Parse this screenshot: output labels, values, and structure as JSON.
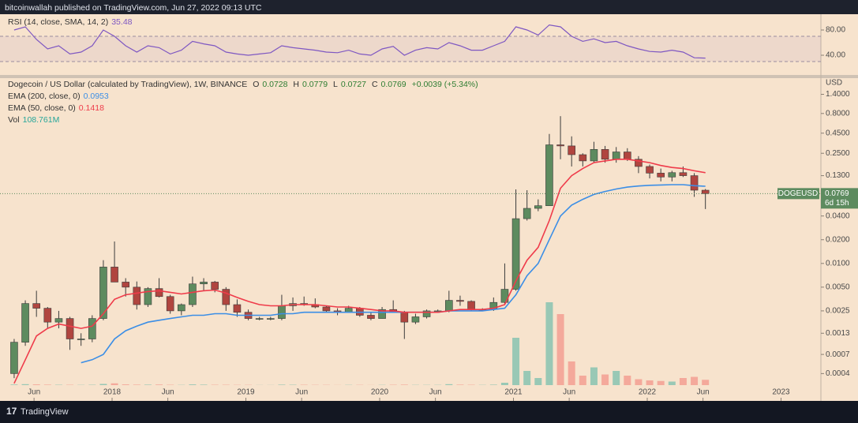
{
  "header": {
    "text": "bitcoinwallah published on TradingView.com, Jun 27, 2022 09:13 UTC"
  },
  "footer": {
    "brand": "TradingView"
  },
  "chart_data": [
    {
      "type": "line",
      "title": "RSI (14, close, SMA, 14, 2)",
      "color": "#7e57c2",
      "x": [
        "2017-04",
        "2017-05",
        "2017-06",
        "2017-07",
        "2017-08",
        "2017-09",
        "2017-10",
        "2017-11",
        "2017-12",
        "2018-01",
        "2018-02",
        "2018-03",
        "2018-04",
        "2018-05",
        "2018-06",
        "2018-07",
        "2018-08",
        "2018-09",
        "2018-10",
        "2018-11",
        "2018-12",
        "2019-01",
        "2019-02",
        "2019-03",
        "2019-04",
        "2019-05",
        "2019-06",
        "2019-07",
        "2019-08",
        "2019-09",
        "2019-10",
        "2019-11",
        "2019-12",
        "2020-01",
        "2020-02",
        "2020-03",
        "2020-04",
        "2020-05",
        "2020-06",
        "2020-07",
        "2020-08",
        "2020-09",
        "2020-10",
        "2020-11",
        "2020-12",
        "2021-01",
        "2021-02",
        "2021-03",
        "2021-04",
        "2021-05",
        "2021-06",
        "2021-07",
        "2021-08",
        "2021-09",
        "2021-10",
        "2021-11",
        "2021-12",
        "2022-01",
        "2022-02",
        "2022-03",
        "2022-04",
        "2022-05",
        "2022-06"
      ],
      "values": [
        80,
        85,
        65,
        50,
        55,
        42,
        45,
        55,
        80,
        70,
        55,
        45,
        55,
        52,
        42,
        48,
        62,
        58,
        55,
        45,
        42,
        40,
        42,
        44,
        55,
        52,
        50,
        48,
        45,
        44,
        48,
        42,
        40,
        50,
        54,
        40,
        48,
        52,
        50,
        60,
        55,
        48,
        48,
        55,
        62,
        85,
        80,
        72,
        88,
        85,
        70,
        62,
        66,
        60,
        62,
        55,
        50,
        46,
        45,
        48,
        45,
        36,
        35.48
      ],
      "band_levels": [
        70,
        30
      ],
      "ylim": [
        8.75,
        105
      ],
      "yticks": [
        {
          "value": 80,
          "label": "80.00"
        },
        {
          "value": 40,
          "label": "40.00"
        }
      ]
    },
    {
      "type": "candlestick",
      "title": "Dogecoin / US Dollar (calculated by TradingView), 1W, BINANCE",
      "y_label": "USD",
      "log_scale": true,
      "x": [
        "2017-04",
        "2017-05",
        "2017-06",
        "2017-07",
        "2017-08",
        "2017-09",
        "2017-10",
        "2017-11",
        "2017-12",
        "2018-01",
        "2018-02",
        "2018-03",
        "2018-04",
        "2018-05",
        "2018-06",
        "2018-07",
        "2018-08",
        "2018-09",
        "2018-10",
        "2018-11",
        "2018-12",
        "2019-01",
        "2019-02",
        "2019-03",
        "2019-04",
        "2019-05",
        "2019-06",
        "2019-07",
        "2019-08",
        "2019-09",
        "2019-10",
        "2019-11",
        "2019-12",
        "2020-01",
        "2020-02",
        "2020-03",
        "2020-04",
        "2020-05",
        "2020-06",
        "2020-07",
        "2020-08",
        "2020-09",
        "2020-10",
        "2020-11",
        "2020-12",
        "2021-01",
        "2021-02",
        "2021-03",
        "2021-04",
        "2021-05",
        "2021-06",
        "2021-07",
        "2021-08",
        "2021-09",
        "2021-10",
        "2021-11",
        "2021-12",
        "2022-01",
        "2022-02",
        "2022-03",
        "2022-04",
        "2022-05",
        "2022-06"
      ],
      "open": [
        0.0004,
        0.001,
        0.0031,
        0.0027,
        0.0018,
        0.002,
        0.0011,
        0.0011,
        0.002,
        0.009,
        0.0058,
        0.005,
        0.003,
        0.0048,
        0.0038,
        0.0025,
        0.003,
        0.0055,
        0.0058,
        0.0047,
        0.003,
        0.0024,
        0.002,
        0.002,
        0.002,
        0.0029,
        0.0031,
        0.003,
        0.0028,
        0.0025,
        0.0024,
        0.0027,
        0.0022,
        0.002,
        0.0026,
        0.0024,
        0.0018,
        0.0021,
        0.0025,
        0.0025,
        0.0034,
        0.0033,
        0.0026,
        0.0026,
        0.0032,
        0.0047,
        0.037,
        0.05,
        0.054,
        0.32,
        0.31,
        0.24,
        0.2,
        0.28,
        0.21,
        0.26,
        0.21,
        0.17,
        0.14,
        0.125,
        0.142,
        0.13,
        0.085
      ],
      "high": [
        0.0011,
        0.0034,
        0.0045,
        0.0028,
        0.0025,
        0.0021,
        0.0013,
        0.0022,
        0.011,
        0.019,
        0.0065,
        0.0059,
        0.005,
        0.0065,
        0.004,
        0.0031,
        0.0068,
        0.0065,
        0.006,
        0.005,
        0.0035,
        0.0026,
        0.0021,
        0.0021,
        0.004,
        0.0037,
        0.0038,
        0.0036,
        0.0029,
        0.0027,
        0.0029,
        0.0028,
        0.0024,
        0.0028,
        0.0034,
        0.0025,
        0.0023,
        0.0026,
        0.0026,
        0.0045,
        0.0039,
        0.0034,
        0.0027,
        0.0037,
        0.01,
        0.087,
        0.085,
        0.065,
        0.44,
        0.74,
        0.41,
        0.25,
        0.35,
        0.31,
        0.3,
        0.29,
        0.23,
        0.18,
        0.16,
        0.15,
        0.17,
        0.14,
        0.088
      ],
      "low": [
        0.00035,
        0.0009,
        0.0021,
        0.0015,
        0.0015,
        0.0008,
        0.0009,
        0.001,
        0.0019,
        0.007,
        0.0038,
        0.0026,
        0.0028,
        0.0037,
        0.0023,
        0.0022,
        0.0028,
        0.0045,
        0.0043,
        0.0025,
        0.0021,
        0.0019,
        0.0019,
        0.0019,
        0.0019,
        0.0025,
        0.0029,
        0.0027,
        0.0024,
        0.0022,
        0.0024,
        0.0021,
        0.0019,
        0.002,
        0.0024,
        0.0011,
        0.0017,
        0.002,
        0.0024,
        0.0024,
        0.0029,
        0.0025,
        0.0025,
        0.0025,
        0.003,
        0.0045,
        0.035,
        0.046,
        0.054,
        0.21,
        0.17,
        0.17,
        0.19,
        0.19,
        0.19,
        0.2,
        0.14,
        0.12,
        0.11,
        0.11,
        0.125,
        0.07,
        0.049
      ],
      "close": [
        0.001,
        0.0031,
        0.0027,
        0.0018,
        0.002,
        0.0011,
        0.0011,
        0.002,
        0.009,
        0.0058,
        0.005,
        0.003,
        0.0048,
        0.0038,
        0.0025,
        0.003,
        0.0055,
        0.0058,
        0.0047,
        0.003,
        0.0024,
        0.002,
        0.002,
        0.002,
        0.0029,
        0.0031,
        0.003,
        0.0028,
        0.0025,
        0.0024,
        0.0027,
        0.0022,
        0.002,
        0.0026,
        0.0024,
        0.0018,
        0.0021,
        0.0025,
        0.0025,
        0.0034,
        0.0033,
        0.0026,
        0.0026,
        0.0032,
        0.0047,
        0.037,
        0.05,
        0.054,
        0.32,
        0.31,
        0.24,
        0.2,
        0.28,
        0.21,
        0.26,
        0.21,
        0.17,
        0.14,
        0.125,
        0.142,
        0.13,
        0.085,
        0.0769
      ],
      "up_color": "#5d8b5f",
      "down_color": "#b0453f",
      "series": [
        {
          "name": "EMA (200, close, 0)",
          "color": "#3b8ee6",
          "values": [
            null,
            null,
            null,
            null,
            null,
            null,
            0.00055,
            0.0006,
            0.0007,
            0.0011,
            0.0014,
            0.0016,
            0.0018,
            0.0019,
            0.002,
            0.0021,
            0.0022,
            0.0022,
            0.0023,
            0.0023,
            0.0022,
            0.0022,
            0.0022,
            0.0022,
            0.0023,
            0.0023,
            0.0024,
            0.0024,
            0.0024,
            0.0024,
            0.0024,
            0.0024,
            0.0024,
            0.0024,
            0.0024,
            0.0024,
            0.0024,
            0.0024,
            0.0024,
            0.0025,
            0.0025,
            0.0025,
            0.0025,
            0.0026,
            0.0027,
            0.004,
            0.007,
            0.01,
            0.02,
            0.04,
            0.055,
            0.065,
            0.075,
            0.082,
            0.088,
            0.093,
            0.096,
            0.098,
            0.099,
            0.1,
            0.1,
            0.097,
            0.0953
          ]
        },
        {
          "name": "EMA (50, close, 0)",
          "color": "#ef3b4a",
          "values": [
            0.0003,
            0.0006,
            0.0012,
            0.0015,
            0.0017,
            0.0016,
            0.0015,
            0.0016,
            0.0023,
            0.0035,
            0.004,
            0.0042,
            0.0044,
            0.0045,
            0.0043,
            0.0041,
            0.0043,
            0.0045,
            0.0046,
            0.0042,
            0.0037,
            0.0033,
            0.003,
            0.0029,
            0.0029,
            0.003,
            0.003,
            0.003,
            0.0029,
            0.0028,
            0.0028,
            0.0027,
            0.0026,
            0.0025,
            0.0025,
            0.0024,
            0.0024,
            0.0024,
            0.0024,
            0.0025,
            0.0026,
            0.0026,
            0.0026,
            0.0027,
            0.003,
            0.006,
            0.011,
            0.016,
            0.035,
            0.09,
            0.13,
            0.16,
            0.19,
            0.2,
            0.21,
            0.21,
            0.2,
            0.19,
            0.175,
            0.165,
            0.16,
            0.15,
            0.1418
          ]
        }
      ],
      "volume": {
        "name": "Vol",
        "color": "#26a69a",
        "value_label": "108.761M",
        "values": [
          5,
          8,
          6,
          4,
          3,
          3,
          2,
          3,
          10,
          15,
          6,
          4,
          4,
          5,
          3,
          2,
          6,
          4,
          3,
          3,
          2,
          2,
          1,
          1,
          4,
          3,
          3,
          2,
          2,
          1,
          2,
          2,
          1,
          2,
          3,
          4,
          2,
          2,
          2,
          8,
          4,
          3,
          2,
          4,
          20,
          400,
          120,
          60,
          700,
          600,
          200,
          80,
          150,
          90,
          120,
          80,
          50,
          40,
          35,
          30,
          60,
          70,
          45
        ]
      },
      "last_bar": {
        "open": 0.0728,
        "high": 0.0779,
        "low": 0.0727,
        "close": 0.0769,
        "change": "+0.0039 (+5.34%)"
      },
      "ohlc_keys": [
        "O",
        "H",
        "L",
        "C"
      ],
      "symbol_label": "DOGEUSD",
      "countdown": "6d 15h",
      "ylim": [
        0.00018,
        2.3
      ],
      "yticks": [
        {
          "value": 1.4,
          "label": "1.4000"
        },
        {
          "value": 0.8,
          "label": "0.8000"
        },
        {
          "value": 0.45,
          "label": "0.4500"
        },
        {
          "value": 0.25,
          "label": "0.2500"
        },
        {
          "value": 0.13,
          "label": "0.1300"
        },
        {
          "value": 0.04,
          "label": "0.0400"
        },
        {
          "value": 0.02,
          "label": "0.0200"
        },
        {
          "value": 0.01,
          "label": "0.0100"
        },
        {
          "value": 0.005,
          "label": "0.0050"
        },
        {
          "value": 0.0025,
          "label": "0.0025"
        },
        {
          "value": 0.0013,
          "label": "0.0013"
        },
        {
          "value": 0.0007,
          "label": "0.0007"
        },
        {
          "value": 0.0004,
          "label": "0.0004"
        }
      ],
      "xticks": [
        {
          "value": "2017-06",
          "label": "Jun"
        },
        {
          "value": "2018-01",
          "label": "2018"
        },
        {
          "value": "2018-06",
          "label": "Jun"
        },
        {
          "value": "2019-01",
          "label": "2019"
        },
        {
          "value": "2019-06",
          "label": "Jun"
        },
        {
          "value": "2020-01",
          "label": "2020"
        },
        {
          "value": "2020-06",
          "label": "Jun"
        },
        {
          "value": "2021-01",
          "label": "2021"
        },
        {
          "value": "2021-06",
          "label": "Jun"
        },
        {
          "value": "2022-01",
          "label": "2022"
        },
        {
          "value": "2022-06",
          "label": "Jun"
        },
        {
          "value": "2023-01",
          "label": "2023"
        }
      ]
    }
  ]
}
